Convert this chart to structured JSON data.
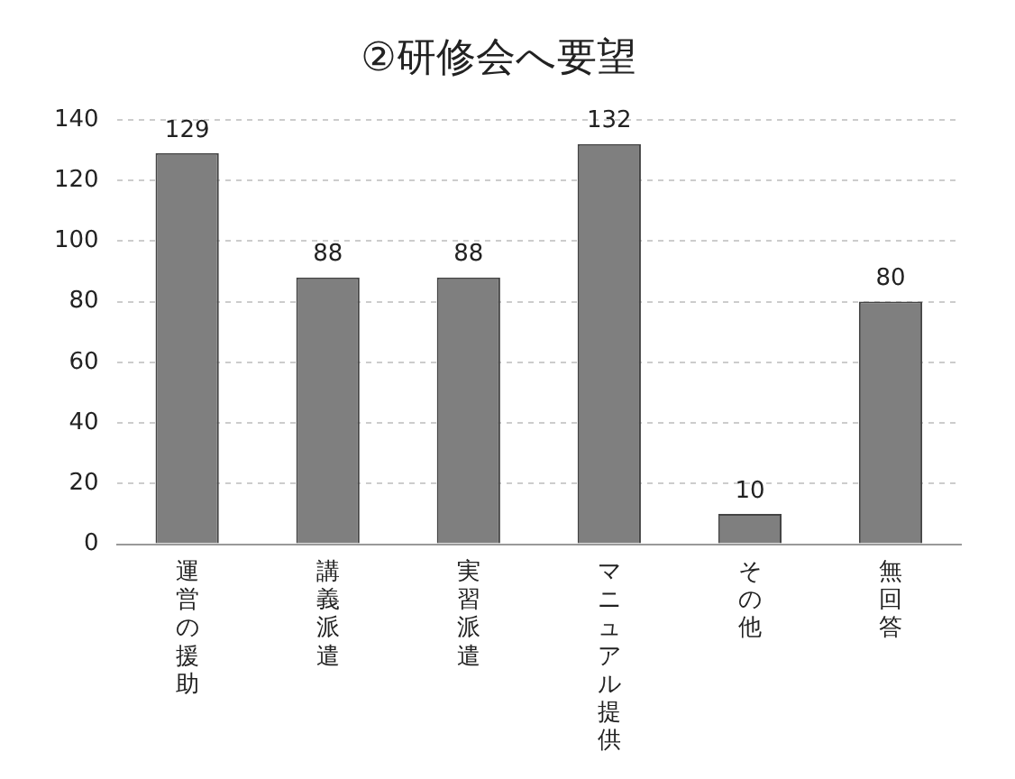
{
  "chart_data": {
    "type": "bar",
    "title": "②研修会へ要望",
    "categories": [
      "運営の援助",
      "講義派遣",
      "実習派遣",
      "マニュアル提供",
      "その他",
      "無回答"
    ],
    "values": [
      129,
      88,
      88,
      132,
      10,
      80
    ],
    "color": "#7f7f7f",
    "ylim": [
      0,
      140
    ],
    "yticks": [
      0,
      20,
      40,
      60,
      80,
      100,
      120,
      140
    ],
    "grid": "y",
    "data_labels": true
  }
}
